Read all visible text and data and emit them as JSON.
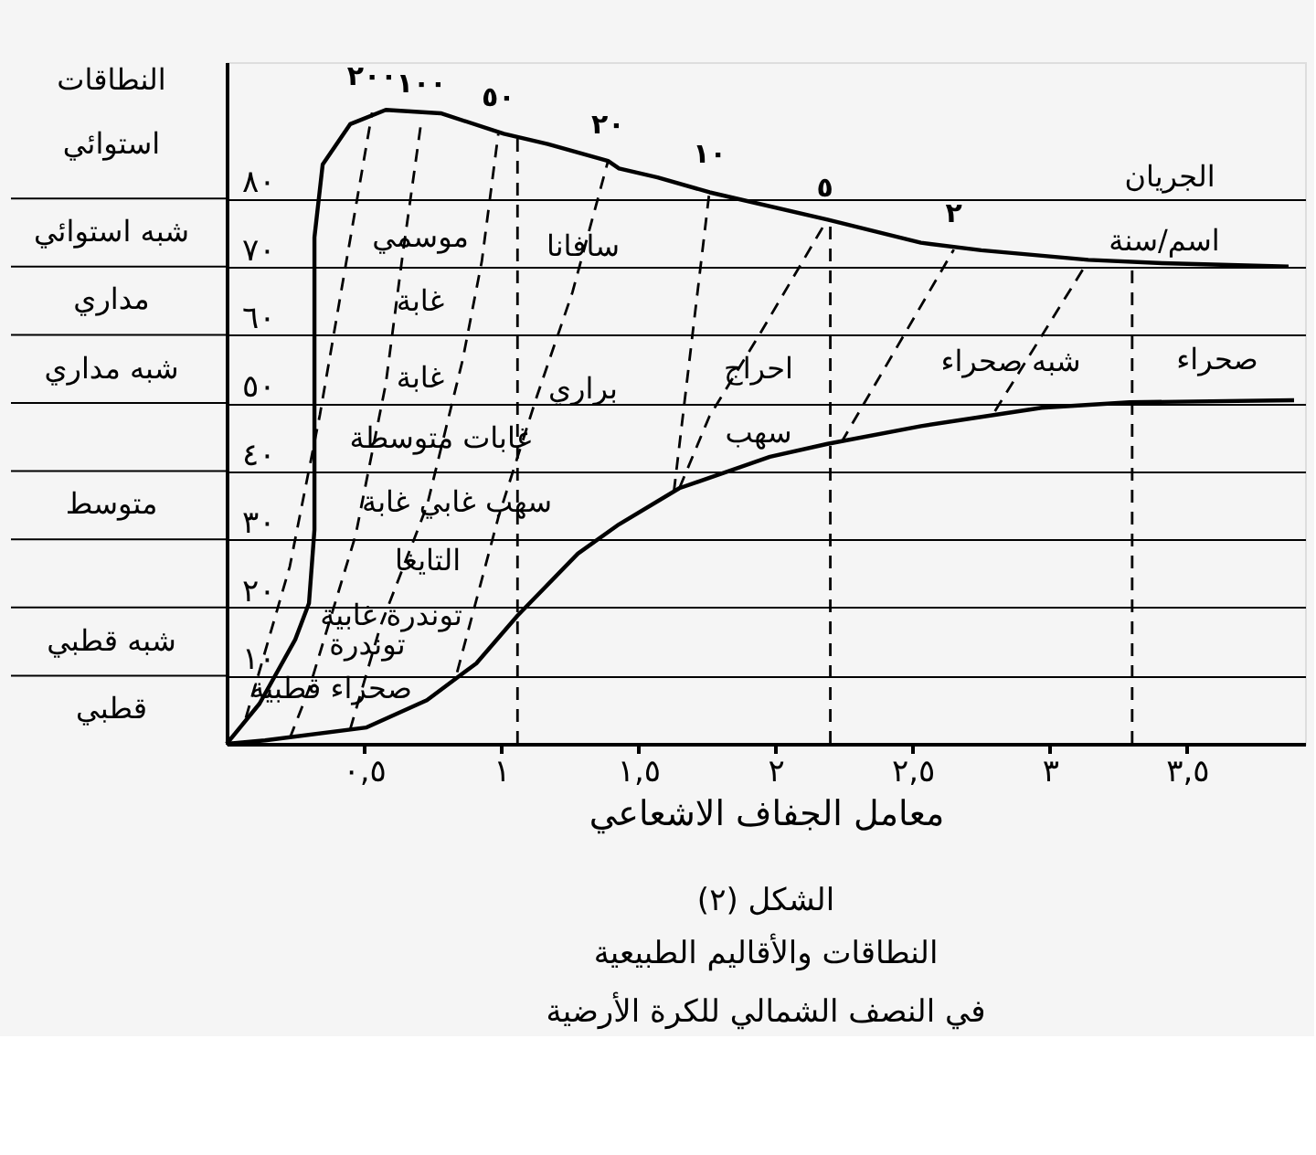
{
  "chart_data": {
    "type": "line",
    "title": "الشكل (٢)",
    "subtitle": "النطاقات والأقاليم الطبيعية\nفي النصف الشمالي للكرة الأرضية",
    "xlabel": "معامل الجفاف الاشعاعي",
    "xlim": [
      0,
      3.93
    ],
    "ylim": [
      0,
      100
    ],
    "grid": "y",
    "xticks": [
      {
        "value": 0.5,
        "label": "٠,٥"
      },
      {
        "value": 1,
        "label": "١"
      },
      {
        "value": 1.5,
        "label": "١,٥"
      },
      {
        "value": 2,
        "label": "٢"
      },
      {
        "value": 2.5,
        "label": "٢,٥"
      },
      {
        "value": 3,
        "label": "٣"
      },
      {
        "value": 3.5,
        "label": "٣,٥"
      }
    ],
    "yticks": [
      {
        "value": 10,
        "label": "١٠"
      },
      {
        "value": 20,
        "label": "٢٠"
      },
      {
        "value": 30,
        "label": "٣٠"
      },
      {
        "value": 40,
        "label": "٤٠"
      },
      {
        "value": 50,
        "label": "٥٠"
      },
      {
        "value": 60,
        "label": "٦٠"
      },
      {
        "value": 70,
        "label": "٧٠"
      },
      {
        "value": 80,
        "label": "٨٠"
      }
    ],
    "series": [
      {
        "color": "#000000",
        "line_style": "solid",
        "x": [
          0,
          0.12,
          0.25,
          0.3,
          0.32,
          0.32,
          0.32,
          0.35,
          0.45,
          0.58,
          0.78,
          1.01,
          1.17,
          1.39,
          1.43,
          1.57,
          1.76,
          2.19,
          2.53,
          2.75,
          3.14,
          3.41,
          3.87
        ],
        "values": [
          0,
          5.9,
          15.3,
          20.6,
          31.4,
          52.8,
          74.3,
          85,
          90.9,
          93,
          92.5,
          89.5,
          88,
          85.5,
          84.4,
          83.1,
          80.9,
          76.9,
          73.5,
          72.4,
          71,
          70.5,
          70
        ]
      },
      {
        "color": "#000000",
        "line_style": "solid",
        "x": [
          0,
          0.14,
          0.51,
          0.73,
          0.91,
          1.06,
          1.28,
          1.43,
          1.65,
          1.98,
          2.19,
          2.53,
          2.97,
          3.29,
          3.89
        ],
        "values": [
          0,
          0.5,
          2.4,
          6.4,
          11.8,
          18.8,
          27.9,
          32.2,
          37.5,
          42.1,
          44,
          46.6,
          49.3,
          50.1,
          50.4
        ]
      },
      {
        "name": "٢٠٠",
        "color": "#000000",
        "line_style": "dashed",
        "x": [
          0.07,
          0.23,
          0.34,
          0.43,
          0.53
        ],
        "values": [
          3.8,
          26,
          48.3,
          69.3,
          92.6
        ]
      },
      {
        "name": "١٠٠",
        "color": "#000000",
        "line_style": "dashed",
        "x": [
          0.23,
          0.3,
          0.47,
          0.58,
          0.64,
          0.71
        ],
        "values": [
          0.8,
          8,
          30.6,
          52.8,
          71.3,
          91.5
        ]
      },
      {
        "name": "٥٠",
        "color": "#000000",
        "line_style": "dashed",
        "x": [
          0.45,
          0.56,
          0.73,
          0.86,
          0.93,
          0.99
        ],
        "values": [
          2.1,
          17.2,
          34.9,
          56.3,
          70.8,
          89.5
        ]
      },
      {
        "name": "٢٠",
        "color": "#000000",
        "line_style": "dashed",
        "x": [
          0.84,
          0.99,
          1.13,
          1.26,
          1.39
        ],
        "values": [
          10.5,
          33.2,
          50.9,
          66.2,
          85.5
        ]
      },
      {
        "name": "١٠",
        "color": "#000000",
        "line_style": "dashed",
        "x": [
          1.63,
          1.76
        ],
        "values": [
          37,
          81.2
        ]
      },
      {
        "name": "٥",
        "color": "#000000",
        "line_style": "dashed",
        "x": [
          1.65,
          1.76,
          1.94,
          2.18
        ],
        "values": [
          37.5,
          48.1,
          59.9,
          76.3
        ]
      },
      {
        "name": "٢",
        "color": "#000000",
        "line_style": "dashed",
        "x": [
          2.24,
          2.65
        ],
        "values": [
          44.2,
          72.5
        ]
      },
      {
        "color": "#000000",
        "line_style": "dashed",
        "x": [
          2.8,
          3.13
        ],
        "values": [
          48.8,
          70.2
        ]
      },
      {
        "color": "#000000",
        "line_style": "dashed",
        "x": [
          1.06,
          1.06
        ],
        "values": [
          0,
          89.5
        ]
      },
      {
        "color": "#000000",
        "line_style": "dashed",
        "x": [
          2.2,
          2.2
        ],
        "values": [
          0,
          76.6
        ]
      },
      {
        "color": "#000000",
        "line_style": "dashed",
        "x": [
          3.3,
          3.3
        ],
        "values": [
          0,
          70.9
        ]
      }
    ],
    "annotations": [
      "النطاقات",
      "استوائي",
      "شبه استوائي",
      "مداري",
      "شبه مداري",
      "متوسط",
      "شبه قطبي",
      "قطبي",
      "موسمي",
      "غابة",
      "غابة",
      "غابات متوسطة",
      "سهب غابي غابة",
      "التايغا",
      "توندرة غابية",
      "توندرة",
      "صحراء قطبية",
      "سافانا",
      "براري",
      "احراج",
      "سهب",
      "شبه صحراء",
      "صحراء",
      "الجريان",
      "اسم/سنة"
    ]
  }
}
